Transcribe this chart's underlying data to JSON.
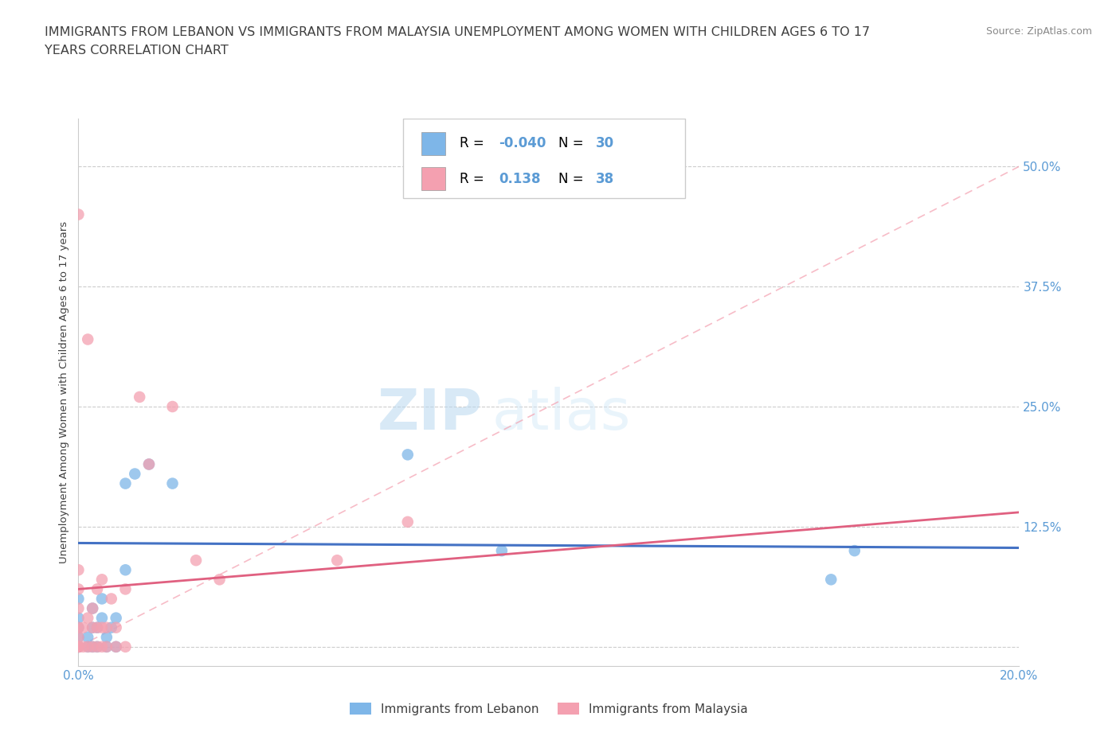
{
  "title_line1": "IMMIGRANTS FROM LEBANON VS IMMIGRANTS FROM MALAYSIA UNEMPLOYMENT AMONG WOMEN WITH CHILDREN AGES 6 TO 17",
  "title_line2": "YEARS CORRELATION CHART",
  "source_text": "Source: ZipAtlas.com",
  "watermark_part1": "ZIP",
  "watermark_part2": "atlas",
  "ylabel": "Unemployment Among Women with Children Ages 6 to 17 years",
  "xlim": [
    0.0,
    0.2
  ],
  "ylim": [
    -0.02,
    0.55
  ],
  "xticks": [
    0.0,
    0.05,
    0.1,
    0.15,
    0.2
  ],
  "yticks": [
    0.0,
    0.125,
    0.25,
    0.375,
    0.5
  ],
  "yticklabels": [
    "",
    "12.5%",
    "25.0%",
    "37.5%",
    "50.0%"
  ],
  "lebanon_color": "#7EB6E8",
  "malaysia_color": "#F4A0B0",
  "grid_color": "#CCCCCC",
  "background_color": "#FFFFFF",
  "legend_label1": "Immigrants from Lebanon",
  "legend_label2": "Immigrants from Malaysia",
  "lebanon_scatter_x": [
    0.0,
    0.0,
    0.0,
    0.0,
    0.0,
    0.0,
    0.0,
    0.002,
    0.002,
    0.003,
    0.003,
    0.003,
    0.004,
    0.004,
    0.005,
    0.005,
    0.006,
    0.006,
    0.007,
    0.008,
    0.008,
    0.01,
    0.01,
    0.012,
    0.015,
    0.02,
    0.07,
    0.09,
    0.16,
    0.165
  ],
  "lebanon_scatter_y": [
    0.0,
    0.0,
    0.0,
    0.01,
    0.02,
    0.03,
    0.05,
    0.0,
    0.01,
    0.0,
    0.02,
    0.04,
    0.0,
    0.02,
    0.03,
    0.05,
    0.0,
    0.01,
    0.02,
    0.0,
    0.03,
    0.08,
    0.17,
    0.18,
    0.19,
    0.17,
    0.2,
    0.1,
    0.07,
    0.1
  ],
  "malaysia_scatter_x": [
    0.0,
    0.0,
    0.0,
    0.0,
    0.0,
    0.0,
    0.0,
    0.0,
    0.0,
    0.0,
    0.001,
    0.001,
    0.002,
    0.002,
    0.002,
    0.003,
    0.003,
    0.003,
    0.004,
    0.004,
    0.004,
    0.005,
    0.005,
    0.005,
    0.006,
    0.006,
    0.007,
    0.008,
    0.008,
    0.01,
    0.01,
    0.013,
    0.015,
    0.02,
    0.025,
    0.03,
    0.055,
    0.07
  ],
  "malaysia_scatter_y": [
    0.0,
    0.0,
    0.0,
    0.0,
    0.01,
    0.02,
    0.04,
    0.06,
    0.08,
    0.45,
    0.0,
    0.02,
    0.0,
    0.03,
    0.32,
    0.0,
    0.02,
    0.04,
    0.0,
    0.02,
    0.06,
    0.0,
    0.02,
    0.07,
    0.0,
    0.02,
    0.05,
    0.0,
    0.02,
    0.0,
    0.06,
    0.26,
    0.19,
    0.25,
    0.09,
    0.07,
    0.09,
    0.13
  ],
  "title_color": "#404040",
  "axis_label_color": "#404040",
  "tick_label_color": "#5B9BD5",
  "legend_R_color": "#5B9BD5",
  "trendline_lebanon_color": "#4472C4",
  "trendline_malaysia_color": "#E06080",
  "ref_line_color": "#F4A0B0",
  "trendline_lebanon_start_y": 0.108,
  "trendline_lebanon_end_y": 0.103,
  "trendline_malaysia_start_y": 0.06,
  "trendline_malaysia_end_y": 0.14
}
